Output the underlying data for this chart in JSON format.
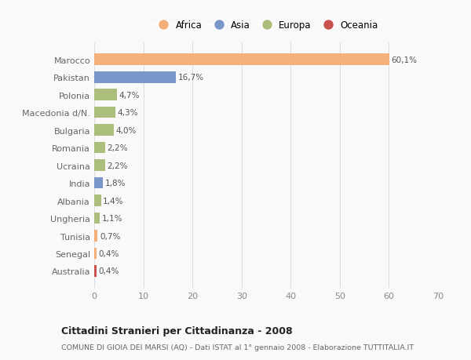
{
  "countries": [
    "Marocco",
    "Pakistan",
    "Polonia",
    "Macedonia d/N.",
    "Bulgaria",
    "Romania",
    "Ucraina",
    "India",
    "Albania",
    "Ungheria",
    "Tunisia",
    "Senegal",
    "Australia"
  ],
  "values": [
    60.1,
    16.7,
    4.7,
    4.3,
    4.0,
    2.2,
    2.2,
    1.8,
    1.4,
    1.1,
    0.7,
    0.4,
    0.4
  ],
  "labels": [
    "60,1%",
    "16,7%",
    "4,7%",
    "4,3%",
    "4,0%",
    "2,2%",
    "2,2%",
    "1,8%",
    "1,4%",
    "1,1%",
    "0,7%",
    "0,4%",
    "0,4%"
  ],
  "continents": [
    "Africa",
    "Asia",
    "Europa",
    "Europa",
    "Europa",
    "Europa",
    "Europa",
    "Asia",
    "Europa",
    "Europa",
    "Africa",
    "Africa",
    "Oceania"
  ],
  "continent_colors": {
    "Africa": "#F5B07A",
    "Asia": "#7B96C8",
    "Europa": "#ABBE7C",
    "Oceania": "#C9514E"
  },
  "legend_order": [
    "Africa",
    "Asia",
    "Europa",
    "Oceania"
  ],
  "xlim": [
    0,
    70
  ],
  "xticks": [
    0,
    10,
    20,
    30,
    40,
    50,
    60,
    70
  ],
  "title_bold": "Cittadini Stranieri per Cittadinanza - 2008",
  "subtitle": "COMUNE DI GIOIA DEI MARSI (AQ) - Dati ISTAT al 1° gennaio 2008 - Elaborazione TUTTITALIA.IT",
  "background_color": "#f9f9f9",
  "grid_color": "#dddddd",
  "bar_height": 0.65
}
